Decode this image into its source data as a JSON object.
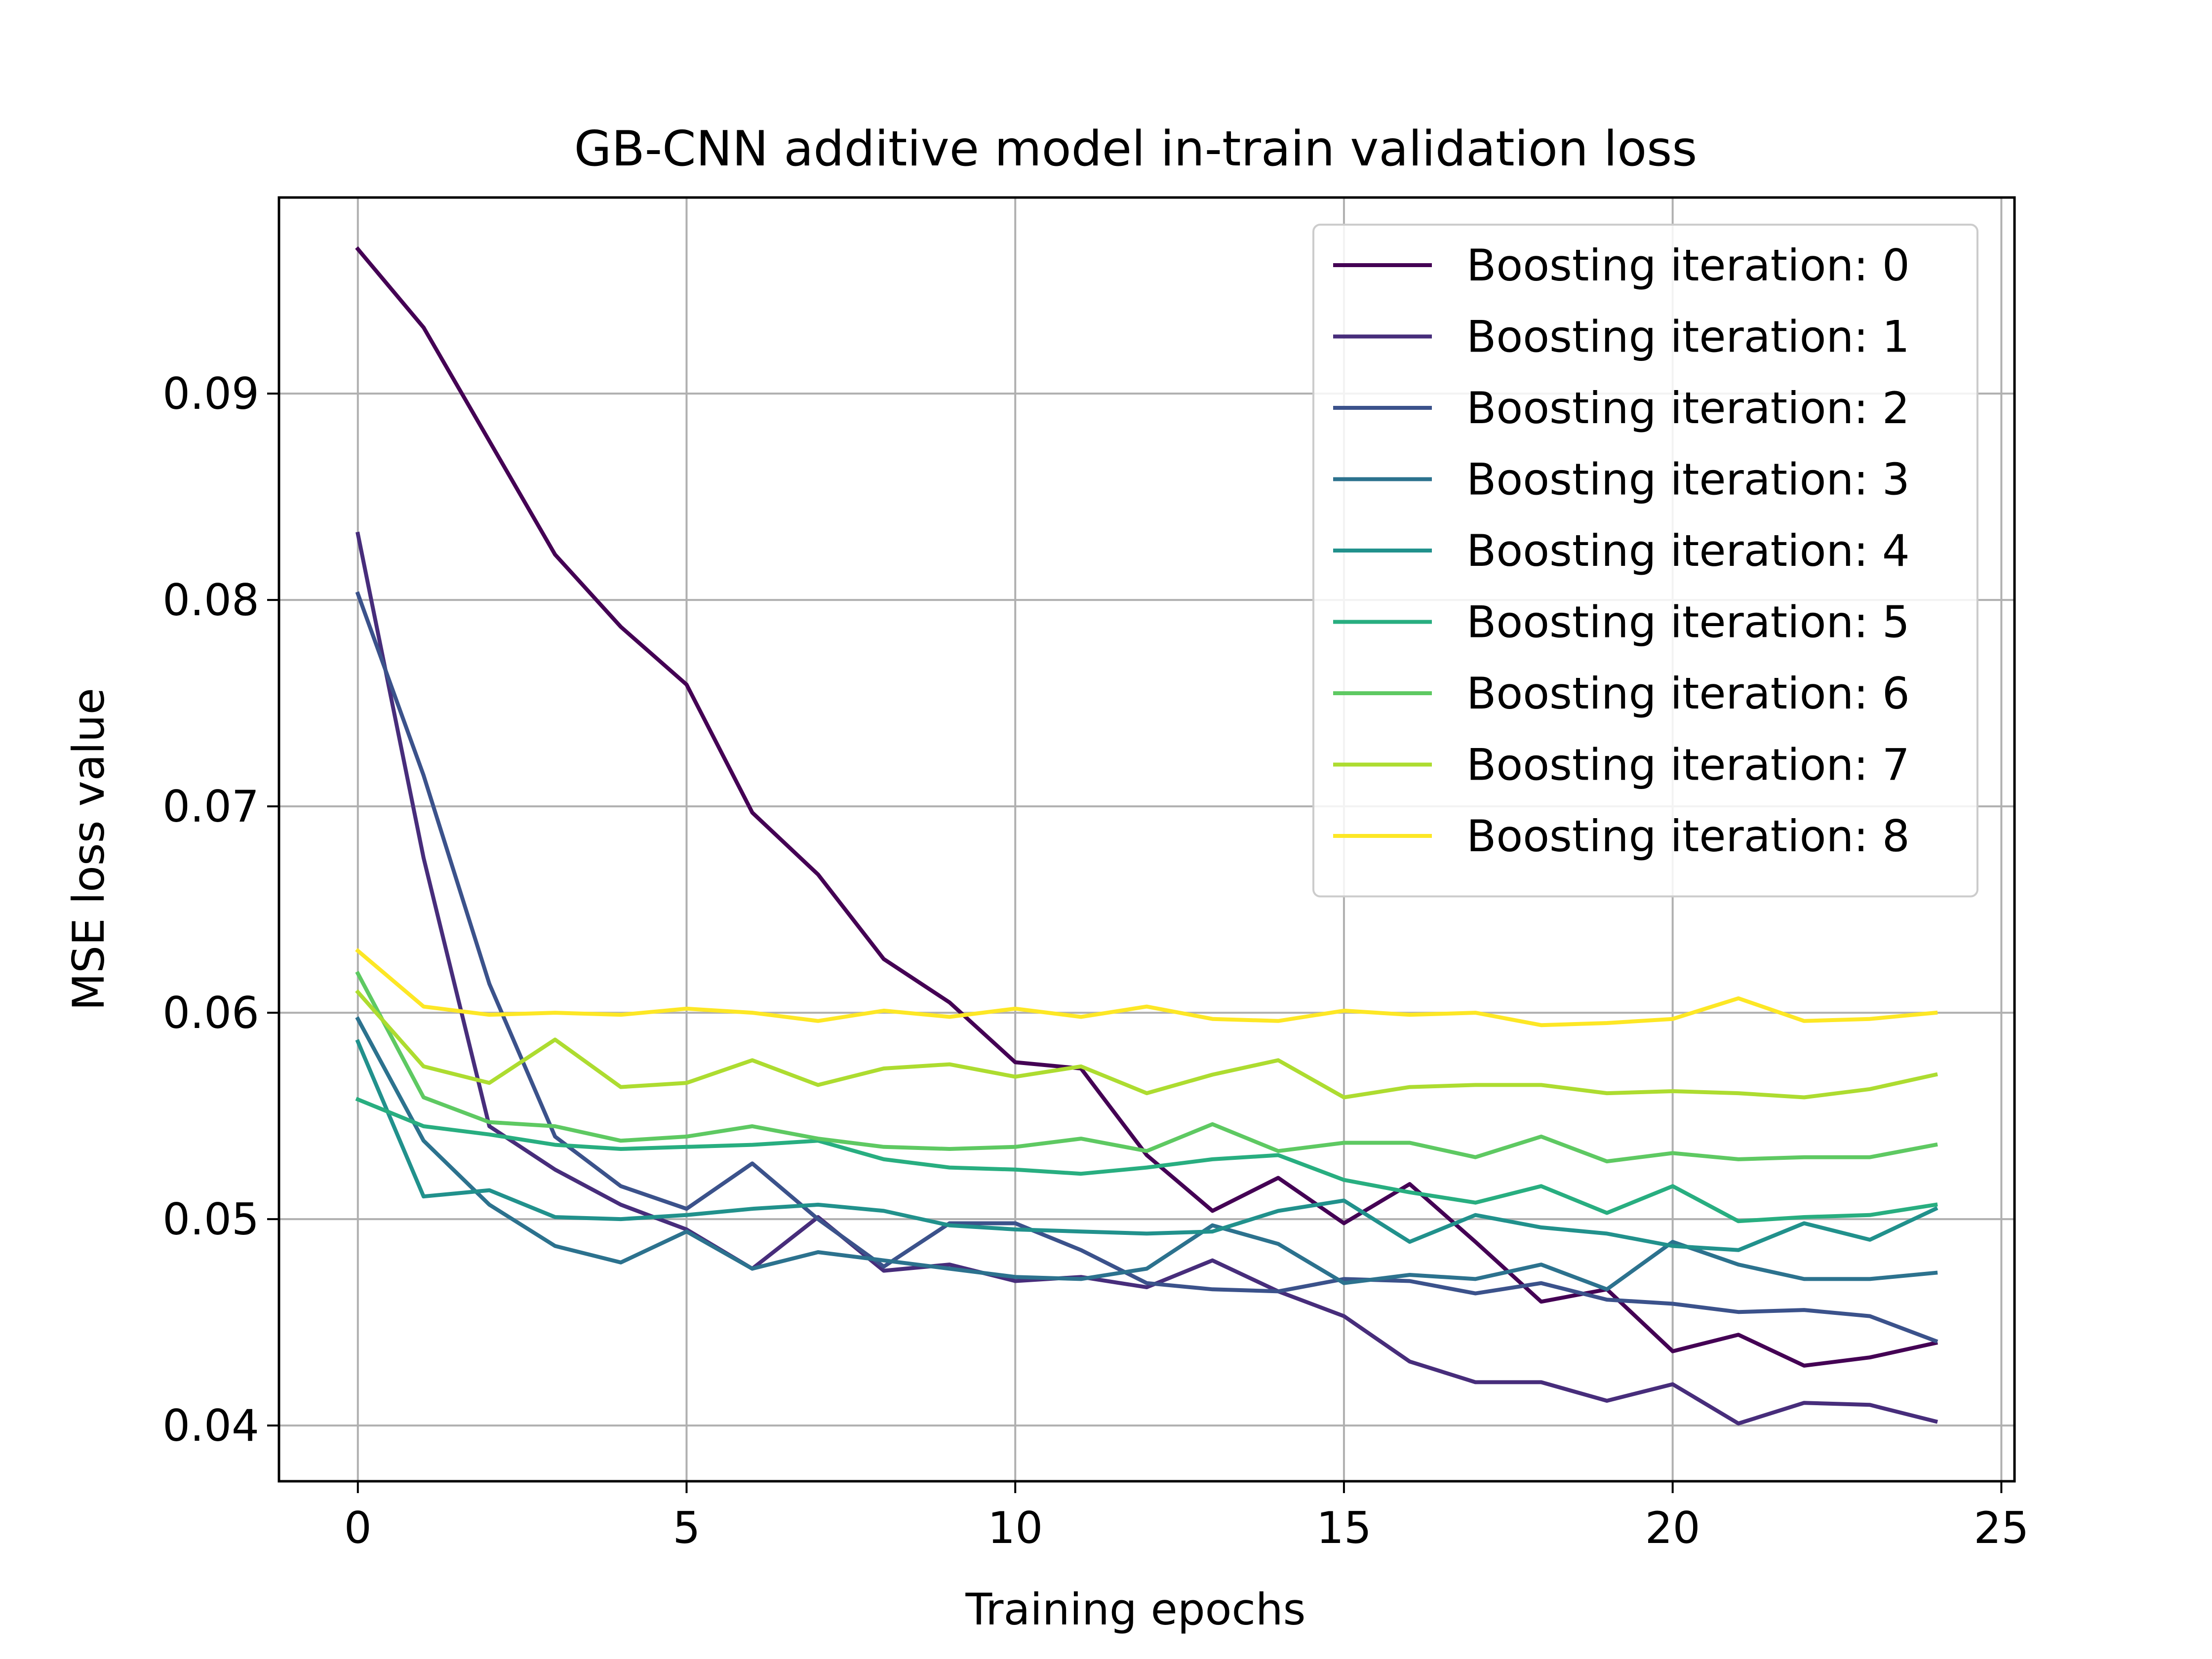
{
  "chart_data": {
    "type": "line",
    "title": "GB-CNN additive model in-train validation loss",
    "xlabel": "Training epochs",
    "ylabel": "MSE loss value",
    "xlim": [
      -1.2,
      25.2
    ],
    "ylim": [
      0.0373,
      0.0995
    ],
    "xticks": [
      0,
      5,
      10,
      15,
      20,
      25
    ],
    "yticks": [
      0.04,
      0.05,
      0.06,
      0.07,
      0.08,
      0.09
    ],
    "xtick_labels": [
      "0",
      "5",
      "10",
      "15",
      "20",
      "25"
    ],
    "ytick_labels": [
      "0.04",
      "0.05",
      "0.06",
      "0.07",
      "0.08",
      "0.09"
    ],
    "grid": true,
    "legend_position": "top-right",
    "x": [
      0,
      1,
      2,
      3,
      4,
      5,
      6,
      7,
      8,
      9,
      10,
      11,
      12,
      13,
      14,
      15,
      16,
      17,
      18,
      19,
      20,
      21,
      22,
      23,
      24
    ],
    "series": [
      {
        "name": "Boosting iteration: 0",
        "color": "#440154",
        "values": [
          0.097,
          0.0932,
          0.0877,
          0.0822,
          0.0787,
          0.0759,
          0.0697,
          0.0667,
          0.0626,
          0.0605,
          0.0576,
          0.0573,
          0.0531,
          0.0504,
          0.052,
          0.0498,
          0.0517,
          0.0489,
          0.046,
          0.0466,
          0.0436,
          0.0444,
          0.0429,
          0.0433,
          0.044
        ]
      },
      {
        "name": "Boosting iteration: 1",
        "color": "#472d7b",
        "values": [
          0.0832,
          0.0675,
          0.0545,
          0.0524,
          0.0507,
          0.0495,
          0.0476,
          0.0501,
          0.0475,
          0.0478,
          0.047,
          0.0472,
          0.0467,
          0.048,
          0.0465,
          0.0453,
          0.0431,
          0.0421,
          0.0421,
          0.0412,
          0.042,
          0.0401,
          0.0411,
          0.041,
          0.0402
        ]
      },
      {
        "name": "Boosting iteration: 2",
        "color": "#3b528b",
        "values": [
          0.0803,
          0.0715,
          0.0614,
          0.054,
          0.0516,
          0.0505,
          0.0527,
          0.05,
          0.0477,
          0.0498,
          0.0498,
          0.0485,
          0.0469,
          0.0466,
          0.0465,
          0.0471,
          0.047,
          0.0464,
          0.0469,
          0.0461,
          0.0459,
          0.0455,
          0.0456,
          0.0453,
          0.0441
        ]
      },
      {
        "name": "Boosting iteration: 3",
        "color": "#2c728e",
        "values": [
          0.0597,
          0.0538,
          0.0507,
          0.0487,
          0.0479,
          0.0494,
          0.0476,
          0.0484,
          0.048,
          0.0476,
          0.0472,
          0.0471,
          0.0476,
          0.0497,
          0.0488,
          0.0469,
          0.0473,
          0.0471,
          0.0478,
          0.0466,
          0.0489,
          0.0478,
          0.0471,
          0.0471,
          0.0474
        ]
      },
      {
        "name": "Boosting iteration: 4",
        "color": "#21918c",
        "values": [
          0.0586,
          0.0511,
          0.0514,
          0.0501,
          0.05,
          0.0502,
          0.0505,
          0.0507,
          0.0504,
          0.0497,
          0.0495,
          0.0494,
          0.0493,
          0.0494,
          0.0504,
          0.0509,
          0.0489,
          0.0502,
          0.0496,
          0.0493,
          0.0487,
          0.0485,
          0.0498,
          0.049,
          0.0505
        ]
      },
      {
        "name": "Boosting iteration: 5",
        "color": "#28ae80",
        "values": [
          0.0558,
          0.0545,
          0.0541,
          0.0536,
          0.0534,
          0.0535,
          0.0536,
          0.0538,
          0.0529,
          0.0525,
          0.0524,
          0.0522,
          0.0525,
          0.0529,
          0.0531,
          0.0519,
          0.0513,
          0.0508,
          0.0516,
          0.0503,
          0.0516,
          0.0499,
          0.0501,
          0.0502,
          0.0507
        ]
      },
      {
        "name": "Boosting iteration: 6",
        "color": "#5ec962",
        "values": [
          0.0619,
          0.0559,
          0.0547,
          0.0545,
          0.0538,
          0.054,
          0.0545,
          0.0539,
          0.0535,
          0.0534,
          0.0535,
          0.0539,
          0.0533,
          0.0546,
          0.0533,
          0.0537,
          0.0537,
          0.053,
          0.054,
          0.0528,
          0.0532,
          0.0529,
          0.053,
          0.053,
          0.0536
        ]
      },
      {
        "name": "Boosting iteration: 7",
        "color": "#addc30",
        "values": [
          0.061,
          0.0574,
          0.0566,
          0.0587,
          0.0564,
          0.0566,
          0.0577,
          0.0565,
          0.0573,
          0.0575,
          0.0569,
          0.0574,
          0.0561,
          0.057,
          0.0577,
          0.0559,
          0.0564,
          0.0565,
          0.0565,
          0.0561,
          0.0562,
          0.0561,
          0.0559,
          0.0563,
          0.057
        ]
      },
      {
        "name": "Boosting iteration: 8",
        "color": "#fde725",
        "values": [
          0.063,
          0.0603,
          0.0599,
          0.06,
          0.0599,
          0.0602,
          0.06,
          0.0596,
          0.0601,
          0.0598,
          0.0602,
          0.0598,
          0.0603,
          0.0597,
          0.0596,
          0.0601,
          0.0599,
          0.06,
          0.0594,
          0.0595,
          0.0597,
          0.0607,
          0.0596,
          0.0597,
          0.06
        ]
      }
    ]
  }
}
